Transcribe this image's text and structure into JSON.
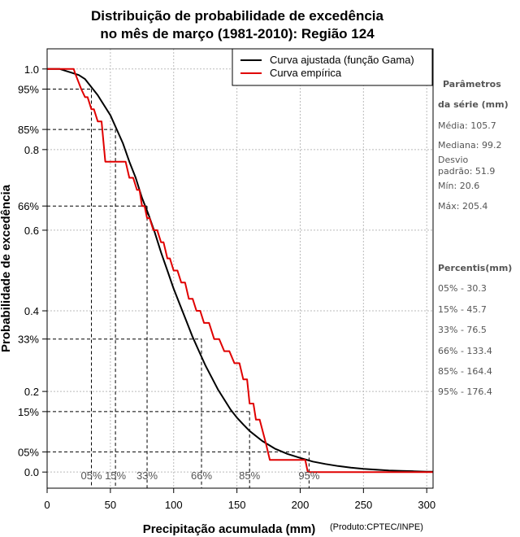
{
  "chart_data": {
    "type": "line",
    "title_line1": "Distribuição de probabilidade de excedência",
    "title_line2": "no mês de março (1981-2010): Região 124",
    "xlabel": "Precipitação acumulada (mm)",
    "ylabel": "Probabilidade de excedência",
    "credit": "(Produto:CPTEC/INPE)",
    "xlim": [
      0,
      305
    ],
    "ylim": [
      -0.04,
      1.05
    ],
    "x_ticks": [
      0,
      50,
      100,
      150,
      200,
      250,
      300
    ],
    "x_tick_labels": [
      "0",
      "50",
      "100",
      "150",
      "200",
      "250",
      "300"
    ],
    "y_ticks": [
      0.0,
      0.2,
      0.4,
      0.6,
      0.8,
      1.0
    ],
    "y_tick_labels": [
      "0.0",
      "0.2",
      "0.4",
      "0.6",
      "0.8",
      "1.0"
    ],
    "legend": [
      {
        "label": "Curva ajustada (função Gama)",
        "color": "#000000"
      },
      {
        "label": "Curva empírica",
        "color": "#e00000"
      }
    ],
    "percentile_levels": [
      {
        "y": 0.95,
        "x": 35.0,
        "y_label": "95%",
        "x_label": "05%"
      },
      {
        "y": 0.85,
        "x": 54.0,
        "y_label": "85%",
        "x_label": "15%"
      },
      {
        "y": 0.66,
        "x": 79.0,
        "y_label": "66%",
        "x_label": "33%"
      },
      {
        "y": 0.33,
        "x": 122.0,
        "y_label": "33%",
        "x_label": "66%"
      },
      {
        "y": 0.15,
        "x": 160.0,
        "y_label": "15%",
        "x_label": "85%"
      },
      {
        "y": 0.05,
        "x": 207.0,
        "y_label": "05%",
        "x_label": "95%"
      }
    ],
    "series": [
      {
        "name": "Curva ajustada (função Gama)",
        "color": "#000000",
        "x": [
          0,
          10,
          20,
          25,
          30,
          35,
          40,
          45,
          50,
          55,
          60,
          65,
          70,
          75,
          80,
          85,
          90,
          95,
          100,
          105,
          110,
          115,
          120,
          125,
          130,
          135,
          140,
          145,
          150,
          155,
          160,
          170,
          180,
          190,
          200,
          210,
          220,
          230,
          240,
          250,
          260,
          270,
          280,
          290,
          300,
          305
        ],
        "y": [
          1.0,
          1.0,
          0.99,
          0.985,
          0.975,
          0.955,
          0.935,
          0.91,
          0.885,
          0.85,
          0.815,
          0.77,
          0.73,
          0.68,
          0.64,
          0.595,
          0.545,
          0.5,
          0.455,
          0.415,
          0.375,
          0.335,
          0.3,
          0.265,
          0.235,
          0.205,
          0.18,
          0.155,
          0.135,
          0.118,
          0.102,
          0.077,
          0.058,
          0.045,
          0.035,
          0.026,
          0.02,
          0.015,
          0.011,
          0.008,
          0.006,
          0.004,
          0.003,
          0.002,
          0.001,
          0.001
        ]
      },
      {
        "name": "Curva empírica",
        "color": "#e00000",
        "x": [
          0,
          21,
          22,
          27,
          30,
          32,
          35,
          37,
          40,
          43,
          46,
          50,
          54,
          58,
          62,
          65,
          68,
          71,
          73,
          75,
          77,
          79,
          81,
          84,
          87,
          90,
          92,
          95,
          97,
          100,
          103,
          106,
          109,
          112,
          115,
          118,
          121,
          124,
          128,
          132,
          136,
          140,
          144,
          148,
          152,
          155,
          158,
          160,
          163,
          165,
          168,
          173,
          176,
          180,
          186,
          192,
          198,
          204,
          206,
          208,
          215,
          240,
          270,
          305
        ],
        "y": [
          1.0,
          1.0,
          0.99,
          0.95,
          0.93,
          0.93,
          0.9,
          0.9,
          0.87,
          0.87,
          0.77,
          0.77,
          0.77,
          0.77,
          0.77,
          0.73,
          0.73,
          0.7,
          0.7,
          0.66,
          0.66,
          0.63,
          0.63,
          0.6,
          0.6,
          0.57,
          0.57,
          0.53,
          0.53,
          0.5,
          0.5,
          0.47,
          0.47,
          0.43,
          0.43,
          0.4,
          0.4,
          0.37,
          0.37,
          0.33,
          0.33,
          0.3,
          0.3,
          0.27,
          0.27,
          0.23,
          0.23,
          0.17,
          0.17,
          0.13,
          0.13,
          0.07,
          0.03,
          0.03,
          0.03,
          0.03,
          0.03,
          0.03,
          0.0,
          0.0,
          0.0,
          0.0,
          0.0,
          0.0
        ]
      }
    ],
    "side_panel": {
      "params_head_1": "Parâmetros",
      "params_head_2": "da série (mm)",
      "media": "Média: 105.7",
      "mediana": "Mediana: 99.2",
      "desvio_1": "Desvio",
      "desvio_2": "padrão: 51.9",
      "min": "Mín: 20.6",
      "max": "Máx: 205.4",
      "percentis_head": "Percentis(mm)",
      "percentis": [
        "05% - 30.3",
        "15% - 45.7",
        "33% - 76.5",
        "66% - 133.4",
        "85% - 164.4",
        "95% - 176.4"
      ]
    }
  }
}
